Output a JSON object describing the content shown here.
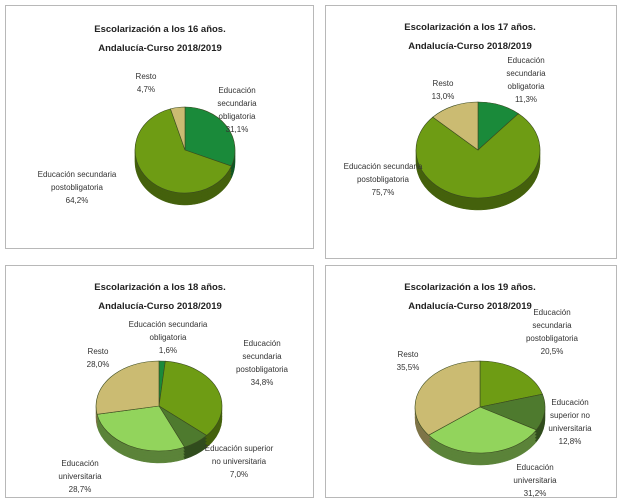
{
  "chart_data": [
    {
      "type": "pie",
      "title": "Escolarización a los 16 años.",
      "subtitle": "Andalucía-Curso 2018/2019",
      "categories": [
        "Educación secundaria obligatoria",
        "Educación secundaria postobligatoria",
        "Resto"
      ],
      "values": [
        31.1,
        64.2,
        4.7
      ],
      "value_labels": [
        "31,1%",
        "64,2%",
        "4,7%"
      ],
      "colors": [
        "#1a8a3a",
        "#6e9c14",
        "#cbbb72"
      ]
    },
    {
      "type": "pie",
      "title": "Escolarización a los 17 años.",
      "subtitle": "Andalucía-Curso 2018/2019",
      "categories": [
        "Educación secundaria obligatoria",
        "Educación secundaria postobligatoria",
        "Resto"
      ],
      "values": [
        11.3,
        75.7,
        13.0
      ],
      "value_labels": [
        "11,3%",
        "75,7%",
        "13,0%"
      ],
      "colors": [
        "#1a8a3a",
        "#6e9c14",
        "#cbbb72"
      ]
    },
    {
      "type": "pie",
      "title": "Escolarización a los 18 años.",
      "subtitle": "Andalucía-Curso 2018/2019",
      "categories": [
        "Educación secundaria obligatoria",
        "Educación secundaria postobligatoria",
        "Educación superior no universitaria",
        "Educación universitaria",
        "Resto"
      ],
      "values": [
        1.6,
        34.8,
        7.0,
        28.7,
        28.0
      ],
      "value_labels": [
        "1,6%",
        "34,8%",
        "7,0%",
        "28,7%",
        "28,0%"
      ],
      "colors": [
        "#1a8a3a",
        "#6e9c14",
        "#4e7a2e",
        "#92d45c",
        "#cbbb72"
      ]
    },
    {
      "type": "pie",
      "title": "Escolarización a los 19 años.",
      "subtitle": "Andalucía-Curso 2018/2019",
      "categories": [
        "Educación secundaria postobligatoria",
        "Educación superior no universitaria",
        "Educación universitaria",
        "Resto"
      ],
      "values": [
        20.5,
        12.8,
        31.2,
        35.5
      ],
      "value_labels": [
        "20,5%",
        "12,8%",
        "31,2%",
        "35,5%"
      ],
      "colors": [
        "#6e9c14",
        "#4e7a2e",
        "#92d45c",
        "#cbbb72"
      ]
    }
  ]
}
